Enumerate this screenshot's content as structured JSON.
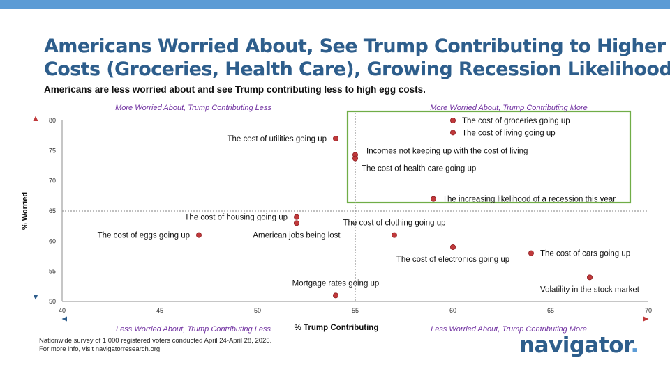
{
  "title_line1": "Americans Worried About, See Trump Contributing to Higher",
  "title_line2": "Costs (Groceries, Health Care), Growing Recession Likelihood",
  "subtitle": "Americans are less worried about and see Trump contributing less to high egg costs.",
  "footnote_line1": "Nationwide survey of 1,000 registered voters conducted April 24-April 28, 2025.",
  "footnote_line2": "For more info, visit navigatorresearch.org.",
  "logo_text": "navigator",
  "logo_dot": ".",
  "colors": {
    "title": "#2e5e8c",
    "quadrant_label": "#7030a0",
    "marker": "#c0393b",
    "highlight_box": "#70ad47",
    "axis_low": "#2e5e8c",
    "axis_high": "#c0393b"
  },
  "chart_data": {
    "type": "scatter",
    "xlabel": "% Trump Contributing",
    "ylabel": "% Worried",
    "xlim": [
      40,
      70
    ],
    "ylim": [
      50,
      80
    ],
    "x_ticks": [
      40,
      45,
      50,
      55,
      60,
      65,
      70
    ],
    "y_ticks": [
      50,
      55,
      60,
      65,
      70,
      75,
      80
    ],
    "reference_lines": {
      "x": 55,
      "y": 65
    },
    "highlight_region": {
      "x": [
        55,
        70
      ],
      "y": [
        65,
        80
      ]
    },
    "quadrant_labels": {
      "top_left": "More Worried About, Trump Contributing Less",
      "top_right": "More Worried About, Trump Contributing More",
      "bottom_left": "Less Worried About, Trump Contributing Less",
      "bottom_right": "Less Worried About, Trump Contributing More"
    },
    "points": [
      {
        "label": "The cost of groceries going up",
        "x": 60,
        "y": 80,
        "label_pos": "right"
      },
      {
        "label": "The cost of living going up",
        "x": 60,
        "y": 78,
        "label_pos": "right"
      },
      {
        "label": "The cost of utilities going up",
        "x": 54,
        "y": 77,
        "label_pos": "left"
      },
      {
        "label": "Incomes not keeping up with the cost of living",
        "x": 55,
        "y": 74.3,
        "label_pos": "right-up"
      },
      {
        "label": "The cost of health care going up",
        "x": 55,
        "y": 73.7,
        "label_pos": "right-down"
      },
      {
        "label": "The increasing likelihood of a recession this year",
        "x": 59,
        "y": 67,
        "label_pos": "right"
      },
      {
        "label": "The cost of housing going up",
        "x": 52,
        "y": 64,
        "label_pos": "left"
      },
      {
        "label": "American jobs being lost",
        "x": 52,
        "y": 63,
        "label_pos": "below"
      },
      {
        "label": "The cost of eggs going up",
        "x": 47,
        "y": 61,
        "label_pos": "left"
      },
      {
        "label": "The cost of clothing going up",
        "x": 57,
        "y": 61,
        "label_pos": "above"
      },
      {
        "label": "The cost of electronics going up",
        "x": 60,
        "y": 59,
        "label_pos": "below"
      },
      {
        "label": "The cost of cars going up",
        "x": 64,
        "y": 58,
        "label_pos": "right"
      },
      {
        "label": "Volatility in the stock market",
        "x": 67,
        "y": 54,
        "label_pos": "below"
      },
      {
        "label": "Mortgage rates going up",
        "x": 54,
        "y": 51,
        "label_pos": "above"
      }
    ]
  }
}
